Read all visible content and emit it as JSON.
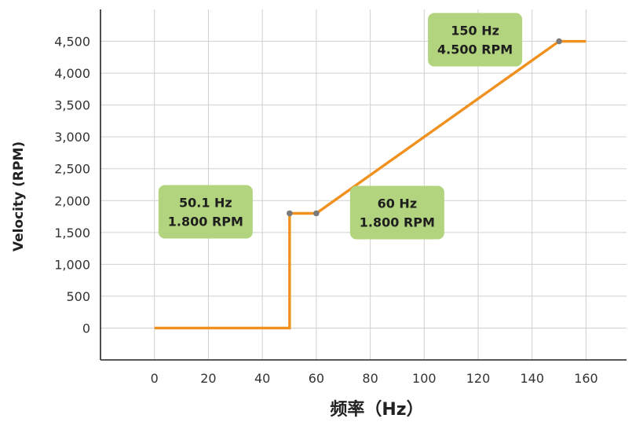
{
  "chart_data": {
    "type": "line",
    "title": "",
    "xlabel": "频率（Hz）",
    "ylabel": "Velocity (RPM)",
    "xlim": [
      -20,
      175
    ],
    "ylim": [
      -500,
      5000
    ],
    "x_ticks": [
      0,
      20,
      40,
      60,
      80,
      100,
      120,
      140,
      160
    ],
    "x_tick_labels": [
      "0",
      "20",
      "40",
      "60",
      "80",
      "100",
      "120",
      "140",
      "160"
    ],
    "y_ticks": [
      0,
      500,
      1000,
      1500,
      2000,
      2500,
      3000,
      3500,
      4000,
      4500
    ],
    "y_tick_labels": [
      "0",
      "500",
      "1,000",
      "1,500",
      "2,000",
      "2,500",
      "3,000",
      "3,500",
      "4,000",
      "4,500"
    ],
    "grid": true,
    "legend": "none",
    "series": [
      {
        "color": "#f0901e",
        "x": [
          0,
          50.1,
          50.1,
          60,
          150,
          160
        ],
        "y": [
          0,
          0,
          1800,
          1800,
          4500,
          4500
        ]
      }
    ],
    "markers": {
      "color": "#7a7a7a",
      "points": [
        {
          "x": 50.1,
          "y": 1800
        },
        {
          "x": 60,
          "y": 1800
        },
        {
          "x": 150,
          "y": 4500
        }
      ]
    },
    "annotations": [
      {
        "line1": "50.1 Hz",
        "line2": "1.800 RPM",
        "x": 50.1,
        "y": 1800
      },
      {
        "line1": "60 Hz",
        "line2": "1.800 RPM",
        "x": 60,
        "y": 1800
      },
      {
        "line1": "150 Hz",
        "line2": "4.500 RPM",
        "x": 150,
        "y": 4500
      }
    ],
    "annotation_fill": "#b3d47e",
    "grid_color": "#d0d0d0",
    "axis_color": "#222222"
  }
}
